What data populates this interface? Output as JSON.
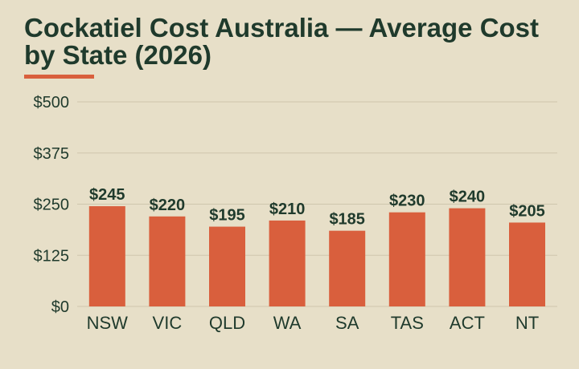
{
  "chart_data": {
    "type": "bar",
    "title": "Cockatiel Cost Australia — Average Cost by State (2026)",
    "xlabel": "",
    "ylabel": "",
    "categories": [
      "NSW",
      "VIC",
      "QLD",
      "WA",
      "SA",
      "TAS",
      "ACT",
      "NT"
    ],
    "values": [
      245,
      220,
      195,
      210,
      185,
      230,
      240,
      205
    ],
    "data_labels": [
      "$245",
      "$220",
      "$195",
      "$210",
      "$185",
      "$230",
      "$240",
      "$205"
    ],
    "ylim": [
      0,
      500
    ],
    "y_ticks": [
      0,
      125,
      250,
      375,
      500
    ],
    "y_tick_labels": [
      "$0",
      "$125",
      "$250",
      "$375",
      "$500"
    ],
    "grid": true,
    "legend": "none",
    "colors": {
      "bar": "#d95f3d",
      "text": "#1f3a2c",
      "background": "#e7dfc8",
      "grid": "#cfc6ad"
    }
  }
}
